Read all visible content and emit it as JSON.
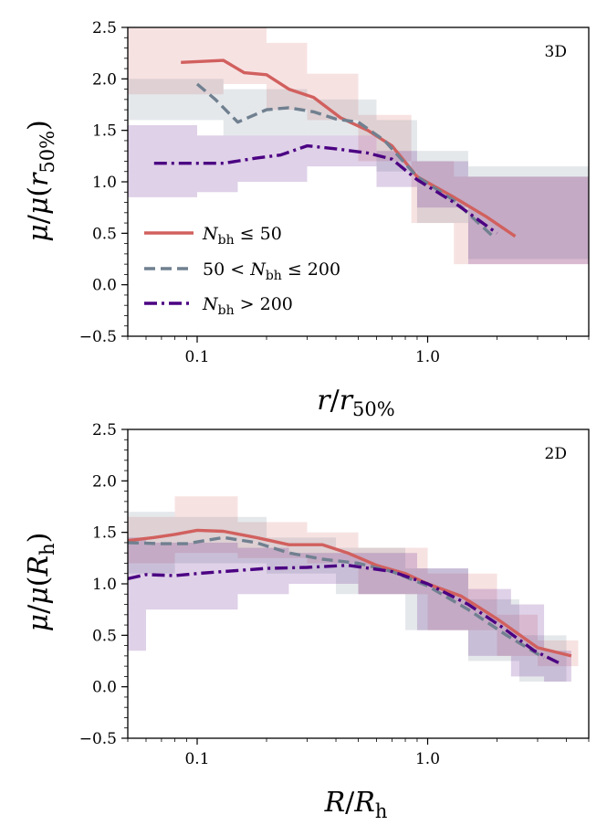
{
  "chart_data": [
    {
      "type": "line",
      "panel_label": "3D",
      "xlabel": "r/r50%",
      "ylabel": "μ/μ(r50%)",
      "xscale": "log",
      "xlim": [
        0.05,
        5.0
      ],
      "ylim": [
        -0.5,
        2.5
      ],
      "xticks": [
        {
          "v": 0.1,
          "label": "0.1"
        },
        {
          "v": 1.0,
          "label": "1.0"
        }
      ],
      "yticks": [
        {
          "v": -0.5,
          "label": "−0.5"
        },
        {
          "v": 0.0,
          "label": "0.0"
        },
        {
          "v": 0.5,
          "label": "0.5"
        },
        {
          "v": 1.0,
          "label": "1.0"
        },
        {
          "v": 1.5,
          "label": "1.5"
        },
        {
          "v": 2.0,
          "label": "2.0"
        },
        {
          "v": 2.5,
          "label": "2.5"
        }
      ],
      "legend": {
        "placement": "lower-left",
        "entries": [
          {
            "series": 0,
            "label": "N_bh ≤ 50"
          },
          {
            "series": 1,
            "label": "50 < N_bh ≤ 200"
          },
          {
            "series": 2,
            "label": "N_bh > 200"
          }
        ]
      },
      "series": [
        {
          "color": "#d1605e",
          "dash": "solid",
          "x": [
            0.085,
            0.13,
            0.16,
            0.2,
            0.25,
            0.32,
            0.42,
            0.55,
            0.7,
            0.9,
            1.3,
            1.8,
            2.4
          ],
          "y": [
            2.16,
            2.18,
            2.06,
            2.04,
            1.9,
            1.82,
            1.62,
            1.5,
            1.35,
            1.05,
            0.85,
            0.66,
            0.47
          ],
          "bands": [
            {
              "x0": 0.05,
              "x1": 0.13,
              "lo": 1.85,
              "hi": 2.5
            },
            {
              "x0": 0.13,
              "x1": 0.2,
              "lo": 1.95,
              "hi": 2.5
            },
            {
              "x0": 0.2,
              "x1": 0.3,
              "lo": 1.7,
              "hi": 2.35
            },
            {
              "x0": 0.3,
              "x1": 0.5,
              "lo": 1.6,
              "hi": 2.05
            },
            {
              "x0": 0.5,
              "x1": 0.85,
              "lo": 1.2,
              "hi": 1.65
            },
            {
              "x0": 0.85,
              "x1": 1.3,
              "lo": 0.6,
              "hi": 1.2
            },
            {
              "x0": 1.3,
              "x1": 5.0,
              "lo": 0.2,
              "hi": 1.05
            }
          ]
        },
        {
          "color": "#708090",
          "dash": "dashed",
          "x": [
            0.1,
            0.12,
            0.15,
            0.2,
            0.25,
            0.32,
            0.4,
            0.5,
            0.65,
            0.9,
            1.3,
            1.9
          ],
          "y": [
            1.95,
            1.8,
            1.58,
            1.7,
            1.72,
            1.68,
            1.61,
            1.58,
            1.4,
            1.05,
            0.82,
            0.48
          ],
          "bands": [
            {
              "x0": 0.05,
              "x1": 0.13,
              "lo": 1.6,
              "hi": 2.0
            },
            {
              "x0": 0.13,
              "x1": 0.3,
              "lo": 1.45,
              "hi": 1.9
            },
            {
              "x0": 0.3,
              "x1": 0.6,
              "lo": 1.45,
              "hi": 1.8
            },
            {
              "x0": 0.6,
              "x1": 0.9,
              "lo": 1.1,
              "hi": 1.6
            },
            {
              "x0": 0.9,
              "x1": 1.5,
              "lo": 0.6,
              "hi": 1.3
            },
            {
              "x0": 1.5,
              "x1": 5.0,
              "lo": 0.25,
              "hi": 1.15
            }
          ]
        },
        {
          "color": "#4b0082",
          "dash": "dashdot",
          "x": [
            0.065,
            0.09,
            0.13,
            0.18,
            0.23,
            0.3,
            0.4,
            0.55,
            0.7,
            0.9,
            1.3,
            2.0
          ],
          "y": [
            1.18,
            1.18,
            1.18,
            1.23,
            1.26,
            1.35,
            1.32,
            1.28,
            1.22,
            1.02,
            0.8,
            0.5
          ],
          "bands": [
            {
              "x0": 0.05,
              "x1": 0.1,
              "lo": 0.85,
              "hi": 1.55
            },
            {
              "x0": 0.1,
              "x1": 0.15,
              "lo": 0.9,
              "hi": 1.45
            },
            {
              "x0": 0.15,
              "x1": 0.3,
              "lo": 1.0,
              "hi": 1.45
            },
            {
              "x0": 0.3,
              "x1": 0.6,
              "lo": 1.15,
              "hi": 1.45
            },
            {
              "x0": 0.6,
              "x1": 0.9,
              "lo": 0.95,
              "hi": 1.3
            },
            {
              "x0": 0.9,
              "x1": 1.5,
              "lo": 0.75,
              "hi": 1.2
            },
            {
              "x0": 1.5,
              "x1": 5.0,
              "lo": 0.2,
              "hi": 1.05
            }
          ]
        }
      ]
    },
    {
      "type": "line",
      "panel_label": "2D",
      "xlabel": "R/Rh",
      "ylabel": "μ/μ(Rh)",
      "xscale": "log",
      "xlim": [
        0.05,
        5.0
      ],
      "ylim": [
        -0.5,
        2.5
      ],
      "xticks": [
        {
          "v": 0.1,
          "label": "0.1"
        },
        {
          "v": 1.0,
          "label": "1.0"
        }
      ],
      "yticks": [
        {
          "v": -0.5,
          "label": "−0.5"
        },
        {
          "v": 0.0,
          "label": "0.0"
        },
        {
          "v": 0.5,
          "label": "0.5"
        },
        {
          "v": 1.0,
          "label": "1.0"
        },
        {
          "v": 1.5,
          "label": "1.5"
        },
        {
          "v": 2.0,
          "label": "2.0"
        },
        {
          "v": 2.5,
          "label": "2.5"
        }
      ],
      "series": [
        {
          "color": "#d1605e",
          "dash": "solid",
          "x": [
            0.05,
            0.065,
            0.08,
            0.1,
            0.13,
            0.18,
            0.25,
            0.35,
            0.45,
            0.6,
            0.8,
            1.0,
            1.4,
            2.0,
            3.0,
            4.2
          ],
          "y": [
            1.42,
            1.45,
            1.48,
            1.52,
            1.51,
            1.45,
            1.38,
            1.38,
            1.3,
            1.18,
            1.1,
            1.0,
            0.88,
            0.66,
            0.38,
            0.3
          ],
          "bands": [
            {
              "x0": 0.05,
              "x1": 0.08,
              "lo": 1.2,
              "hi": 1.65
            },
            {
              "x0": 0.08,
              "x1": 0.15,
              "lo": 1.3,
              "hi": 1.85
            },
            {
              "x0": 0.15,
              "x1": 0.3,
              "lo": 1.25,
              "hi": 1.6
            },
            {
              "x0": 0.3,
              "x1": 0.5,
              "lo": 1.2,
              "hi": 1.5
            },
            {
              "x0": 0.5,
              "x1": 1.0,
              "lo": 0.9,
              "hi": 1.35
            },
            {
              "x0": 1.0,
              "x1": 2.0,
              "lo": 0.55,
              "hi": 1.1
            },
            {
              "x0": 2.0,
              "x1": 3.0,
              "lo": 0.3,
              "hi": 0.7
            },
            {
              "x0": 3.0,
              "x1": 4.5,
              "lo": 0.2,
              "hi": 0.45
            }
          ]
        },
        {
          "color": "#708090",
          "dash": "dashed",
          "x": [
            0.05,
            0.07,
            0.09,
            0.13,
            0.18,
            0.25,
            0.35,
            0.5,
            0.7,
            1.0,
            1.5,
            2.2,
            3.2
          ],
          "y": [
            1.4,
            1.39,
            1.39,
            1.45,
            1.4,
            1.3,
            1.24,
            1.2,
            1.12,
            0.98,
            0.75,
            0.5,
            0.28
          ],
          "bands": [
            {
              "x0": 0.05,
              "x1": 0.08,
              "lo": 1.1,
              "hi": 1.7
            },
            {
              "x0": 0.08,
              "x1": 0.2,
              "lo": 1.2,
              "hi": 1.65
            },
            {
              "x0": 0.2,
              "x1": 0.4,
              "lo": 1.1,
              "hi": 1.45
            },
            {
              "x0": 0.4,
              "x1": 0.8,
              "lo": 0.9,
              "hi": 1.35
            },
            {
              "x0": 0.8,
              "x1": 1.5,
              "lo": 0.55,
              "hi": 1.15
            },
            {
              "x0": 1.5,
              "x1": 2.5,
              "lo": 0.25,
              "hi": 0.85
            },
            {
              "x0": 2.5,
              "x1": 4.0,
              "lo": 0.05,
              "hi": 0.5
            }
          ]
        },
        {
          "color": "#4b0082",
          "dash": "dashdot",
          "x": [
            0.05,
            0.06,
            0.08,
            0.1,
            0.15,
            0.2,
            0.3,
            0.45,
            0.7,
            1.0,
            1.5,
            2.1,
            2.9,
            3.8
          ],
          "y": [
            1.05,
            1.09,
            1.08,
            1.1,
            1.13,
            1.15,
            1.16,
            1.18,
            1.12,
            1.0,
            0.8,
            0.58,
            0.35,
            0.22
          ],
          "bands": [
            {
              "x0": 0.05,
              "x1": 0.06,
              "lo": 0.35,
              "hi": 1.45
            },
            {
              "x0": 0.06,
              "x1": 0.15,
              "lo": 0.75,
              "hi": 1.4
            },
            {
              "x0": 0.15,
              "x1": 0.25,
              "lo": 0.9,
              "hi": 1.35
            },
            {
              "x0": 0.25,
              "x1": 0.5,
              "lo": 1.0,
              "hi": 1.3
            },
            {
              "x0": 0.5,
              "x1": 0.9,
              "lo": 0.9,
              "hi": 1.3
            },
            {
              "x0": 0.9,
              "x1": 1.5,
              "lo": 0.55,
              "hi": 1.15
            },
            {
              "x0": 1.5,
              "x1": 2.3,
              "lo": 0.3,
              "hi": 0.95
            },
            {
              "x0": 2.3,
              "x1": 3.2,
              "lo": 0.1,
              "hi": 0.8
            },
            {
              "x0": 3.2,
              "x1": 4.2,
              "lo": 0.05,
              "hi": 0.35
            }
          ]
        }
      ]
    }
  ]
}
